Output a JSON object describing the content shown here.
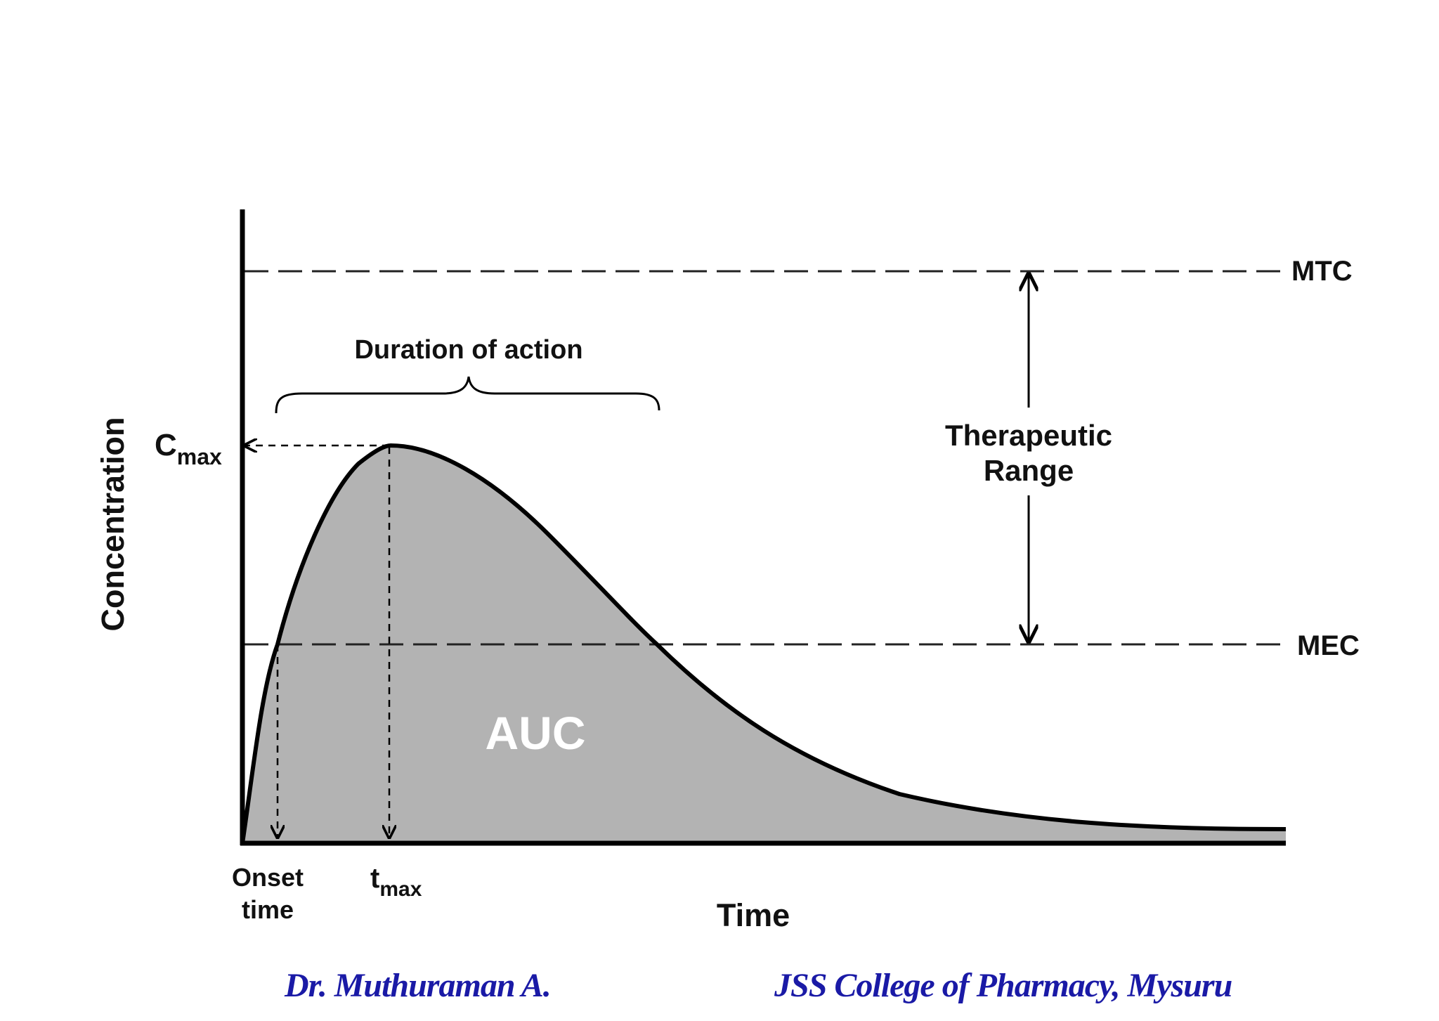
{
  "diagram": {
    "axes": {
      "ylabel": "Concentration",
      "xlabel": "Time"
    },
    "levels": {
      "mtc": "MTC",
      "mec": "MEC"
    },
    "peak": {
      "cmax_main": "C",
      "cmax_sub": "max",
      "tmax_main": "t",
      "tmax_sub": "max"
    },
    "onset": {
      "line1": "Onset",
      "line2": "time"
    },
    "duration_label": "Duration of action",
    "therapeutic_range": {
      "line1": "Therapeutic",
      "line2": "Range"
    },
    "area_label": "AUC",
    "colors": {
      "curve": "#000000",
      "area_fill": "#b3b3b3",
      "text": "#111111",
      "footer_text": "#1a1aa6"
    }
  },
  "footer": {
    "author": "Dr. Muthuraman A.",
    "college": "JSS College of Pharmacy, Mysuru"
  }
}
